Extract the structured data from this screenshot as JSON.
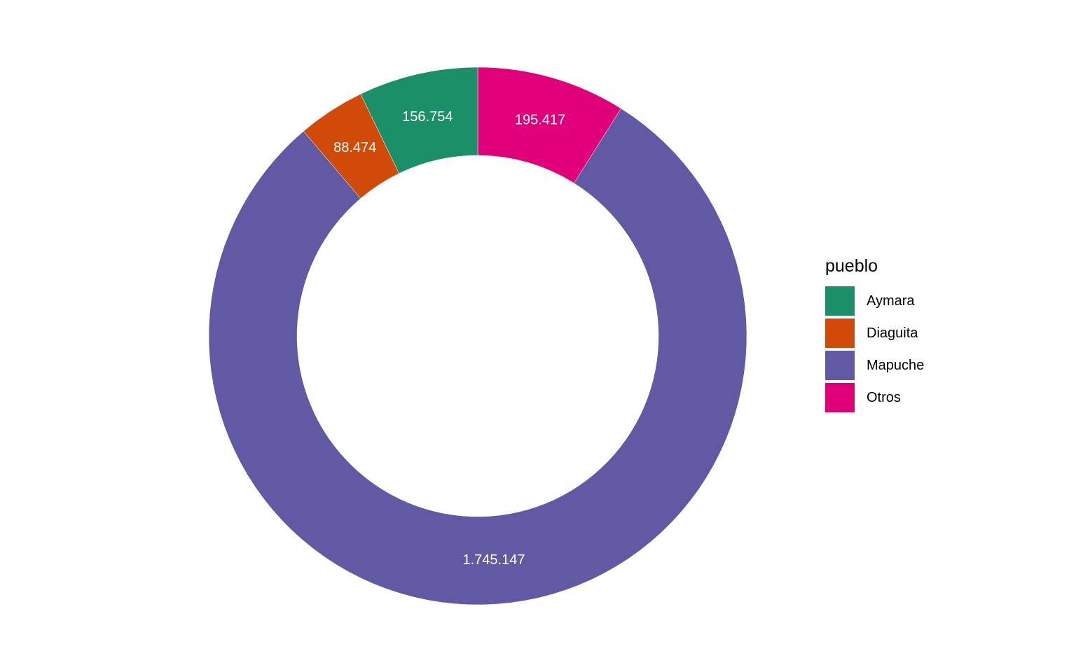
{
  "chart_data": {
    "type": "pie",
    "subtype": "donut",
    "legend_title": "pueblo",
    "legend_position": "right",
    "slices_clockwise_from_top": [
      "Otros",
      "Mapuche",
      "Diaguita",
      "Aymara"
    ],
    "categories": [
      "Aymara",
      "Diaguita",
      "Mapuche",
      "Otros"
    ],
    "values": [
      156754,
      88474,
      1745147,
      195417
    ],
    "labels": [
      "156.754",
      "88.474",
      "1.745.147",
      "195.417"
    ],
    "colors": [
      "#1b9068",
      "#d04a0a",
      "#6159a4",
      "#df0079"
    ]
  }
}
